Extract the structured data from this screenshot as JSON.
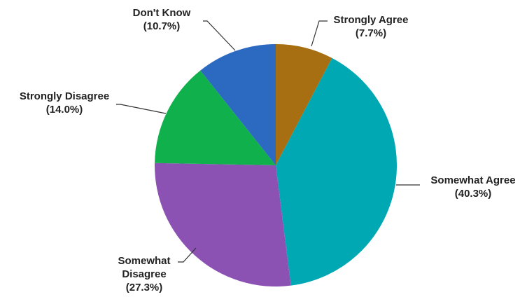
{
  "chart_data": {
    "type": "pie",
    "title": "",
    "start": "12 o'clock, clockwise",
    "slices": [
      {
        "name": "Strongly Agree",
        "value": 7.7,
        "pct_label": "(7.7%)",
        "color": "#A86E12"
      },
      {
        "name": "Somewhat Agree",
        "value": 40.3,
        "pct_label": "(40.3%)",
        "color": "#00A8B4"
      },
      {
        "name": "Somewhat Disagree",
        "value": 27.3,
        "pct_label": "(27.3%)",
        "color": "#8B52B4"
      },
      {
        "name": "Strongly Disagree",
        "value": 14.0,
        "pct_label": "(14.0%)",
        "color": "#10B14C"
      },
      {
        "name": "Don't Know",
        "value": 10.7,
        "pct_label": "(10.7%)",
        "color": "#2C6AC2"
      }
    ]
  }
}
